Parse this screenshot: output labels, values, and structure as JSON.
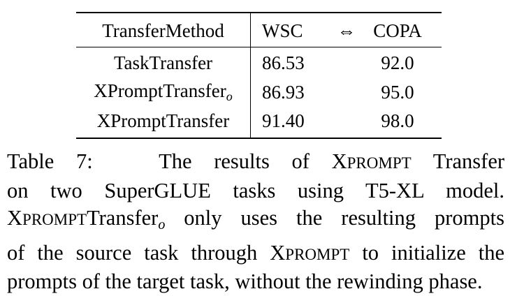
{
  "table": {
    "header": {
      "method": "TransferMethod",
      "wsc": "WSC",
      "arrow": "⇔",
      "copa": "COPA"
    },
    "rows": [
      {
        "method": "TaskTransfer",
        "method_sub": "",
        "wsc": "86.53",
        "copa": "92.0"
      },
      {
        "method": "XPromptTransfer",
        "method_sub": "o",
        "wsc": "86.93",
        "copa": "95.0"
      },
      {
        "method": "XPromptTransfer",
        "method_sub": "",
        "wsc": "91.40",
        "copa": "98.0"
      }
    ]
  },
  "caption": {
    "label": "Table 7:",
    "l1_a": "The results of X",
    "l1_sc": "PROMPT",
    "l1_b": " Transfer",
    "l2": "on two SuperGLUE tasks using T5-XL model.",
    "l3_a": "X",
    "l3_sc": "PROMPT",
    "l3_b": "Transfer",
    "l3_sub": "o",
    "l3_c": " only uses the resulting prompts",
    "l4_a": "of the source task through X",
    "l4_sc": "PROMPT",
    "l4_b": " to initialize the",
    "l5": "prompts of the target task, without the rewinding phase."
  }
}
